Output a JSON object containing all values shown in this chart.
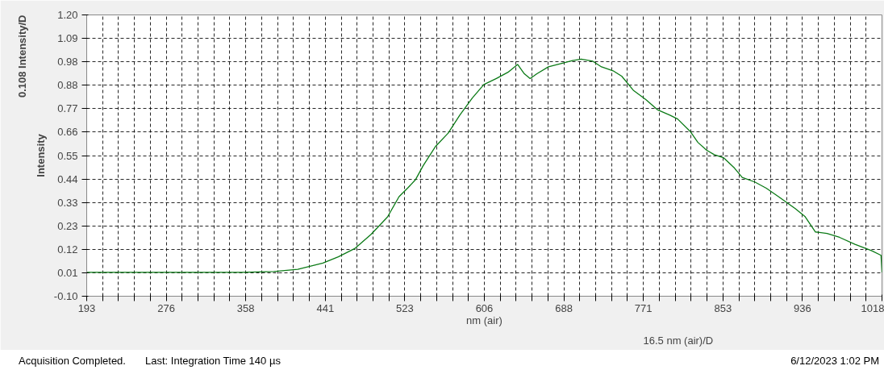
{
  "chart_data": {
    "type": "line",
    "xlabel": "nm (air)",
    "ylabel": "Intensity",
    "annotations": [
      "0.108 Intensity/D",
      "16.5 nm (air)/D",
      "Acquisition Completed.",
      "Last: Integration Time 140 µs",
      "6/12/2023 1:02 PM"
    ],
    "xlim": [
      193,
      1018
    ],
    "ylim": [
      -0.1,
      1.2
    ],
    "xticks": [
      {
        "value": 193,
        "label": "193"
      },
      {
        "value": 209.5,
        "label": null
      },
      {
        "value": 226,
        "label": null
      },
      {
        "value": 242.5,
        "label": null
      },
      {
        "value": 259,
        "label": null
      },
      {
        "value": 275.5,
        "label": "276"
      },
      {
        "value": 292,
        "label": null
      },
      {
        "value": 308.5,
        "label": null
      },
      {
        "value": 325,
        "label": null
      },
      {
        "value": 341.5,
        "label": null
      },
      {
        "value": 358,
        "label": "358"
      },
      {
        "value": 374.5,
        "label": null
      },
      {
        "value": 391,
        "label": null
      },
      {
        "value": 407.5,
        "label": null
      },
      {
        "value": 424,
        "label": null
      },
      {
        "value": 440.5,
        "label": "441"
      },
      {
        "value": 457,
        "label": null
      },
      {
        "value": 473.5,
        "label": null
      },
      {
        "value": 490,
        "label": null
      },
      {
        "value": 506.5,
        "label": null
      },
      {
        "value": 523,
        "label": "523"
      },
      {
        "value": 539.5,
        "label": null
      },
      {
        "value": 556,
        "label": null
      },
      {
        "value": 572.5,
        "label": null
      },
      {
        "value": 589,
        "label": null
      },
      {
        "value": 605.5,
        "label": "606"
      },
      {
        "value": 622,
        "label": null
      },
      {
        "value": 638.5,
        "label": null
      },
      {
        "value": 655,
        "label": null
      },
      {
        "value": 671.5,
        "label": null
      },
      {
        "value": 688,
        "label": "688"
      },
      {
        "value": 704.5,
        "label": null
      },
      {
        "value": 721,
        "label": null
      },
      {
        "value": 737.5,
        "label": null
      },
      {
        "value": 754,
        "label": null
      },
      {
        "value": 770.5,
        "label": "771"
      },
      {
        "value": 787,
        "label": null
      },
      {
        "value": 803.5,
        "label": null
      },
      {
        "value": 820,
        "label": null
      },
      {
        "value": 836.5,
        "label": null
      },
      {
        "value": 853,
        "label": "853"
      },
      {
        "value": 869.5,
        "label": null
      },
      {
        "value": 886,
        "label": null
      },
      {
        "value": 902.5,
        "label": null
      },
      {
        "value": 919,
        "label": null
      },
      {
        "value": 935.5,
        "label": "936"
      },
      {
        "value": 952,
        "label": null
      },
      {
        "value": 968.5,
        "label": null
      },
      {
        "value": 985,
        "label": null
      },
      {
        "value": 1001.5,
        "label": null
      },
      {
        "value": 1018,
        "label": "1018"
      }
    ],
    "yticks": [
      {
        "value": -0.1,
        "label": "-0.10"
      },
      {
        "value": 0.0083,
        "label": "0.01"
      },
      {
        "value": 0.1167,
        "label": "0.12"
      },
      {
        "value": 0.225,
        "label": "0.23"
      },
      {
        "value": 0.3333,
        "label": "0.33"
      },
      {
        "value": 0.4417,
        "label": "0.44"
      },
      {
        "value": 0.55,
        "label": "0.55"
      },
      {
        "value": 0.6583,
        "label": "0.66"
      },
      {
        "value": 0.7667,
        "label": "0.77"
      },
      {
        "value": 0.875,
        "label": "0.88"
      },
      {
        "value": 0.9833,
        "label": "0.98"
      },
      {
        "value": 1.0917,
        "label": "1.09"
      },
      {
        "value": 1.2,
        "label": "1.20"
      }
    ],
    "grid": true,
    "line_style": "solid",
    "marker": "none",
    "series": [
      {
        "color": "#0b7a16",
        "x": [
          193,
          354,
          387,
          412,
          438,
          454,
          471,
          488,
          505,
          517,
          526,
          534,
          542,
          555,
          568,
          580,
          593,
          605,
          618,
          630,
          640,
          647,
          653,
          660,
          672,
          685,
          697,
          706,
          718,
          727,
          739,
          748,
          760,
          773,
          785,
          798,
          806,
          819,
          827,
          836,
          844,
          854,
          865,
          873,
          886,
          898,
          911,
          928,
          938,
          949,
          961,
          974,
          990,
          1007,
          1017,
          1018
        ],
        "values": [
          0.01,
          0.01,
          0.014,
          0.024,
          0.053,
          0.082,
          0.12,
          0.186,
          0.266,
          0.36,
          0.4,
          0.438,
          0.503,
          0.593,
          0.654,
          0.737,
          0.816,
          0.878,
          0.906,
          0.935,
          0.971,
          0.928,
          0.906,
          0.928,
          0.96,
          0.975,
          0.989,
          0.996,
          0.986,
          0.96,
          0.942,
          0.917,
          0.852,
          0.809,
          0.762,
          0.737,
          0.719,
          0.662,
          0.611,
          0.575,
          0.554,
          0.539,
          0.492,
          0.449,
          0.428,
          0.399,
          0.359,
          0.305,
          0.269,
          0.197,
          0.19,
          0.172,
          0.14,
          0.111,
          0.089,
          0.01
        ]
      }
    ]
  }
}
